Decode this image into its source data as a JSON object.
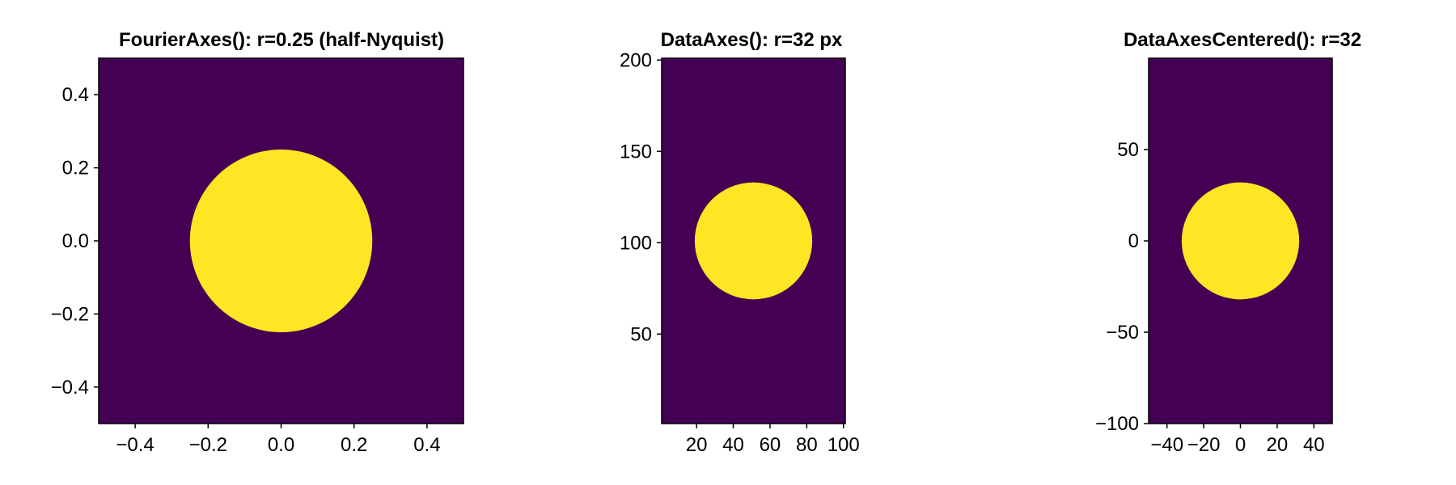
{
  "chart_data": [
    {
      "type": "heatmap",
      "title": "FourierAxes(): r=0.25 (half-Nyquist)",
      "xlim": [
        -0.5,
        0.5
      ],
      "ylim": [
        -0.5,
        0.5
      ],
      "x_ticks": [
        -0.4,
        -0.2,
        0.0,
        0.2,
        0.4
      ],
      "x_tick_labels": [
        "−0.4",
        "−0.2",
        "0.0",
        "0.2",
        "0.4"
      ],
      "y_ticks": [
        -0.4,
        -0.2,
        0.0,
        0.2,
        0.4
      ],
      "y_tick_labels": [
        "−0.4",
        "−0.2",
        "0.0",
        "0.2",
        "0.4"
      ],
      "disk": {
        "center": [
          0.0,
          0.0
        ],
        "radius": 0.25
      },
      "grid": false,
      "colors": {
        "outside": "#440154",
        "inside": "#fde725"
      }
    },
    {
      "type": "heatmap",
      "title": "DataAxes(): r=32 px",
      "xlim": [
        1,
        101
      ],
      "ylim": [
        1,
        201
      ],
      "x_ticks": [
        20,
        40,
        60,
        80,
        100
      ],
      "x_tick_labels": [
        "20",
        "40",
        "60",
        "80",
        "100"
      ],
      "y_ticks": [
        50,
        100,
        150,
        200
      ],
      "y_tick_labels": [
        "50",
        "100",
        "150",
        "200"
      ],
      "disk": {
        "center": [
          51,
          101
        ],
        "radius": 32
      },
      "grid": false,
      "colors": {
        "outside": "#440154",
        "inside": "#fde725"
      }
    },
    {
      "type": "heatmap",
      "title": "DataAxesCentered(): r=32",
      "xlim": [
        -50,
        50
      ],
      "ylim": [
        -100,
        100
      ],
      "x_ticks": [
        -40,
        -20,
        0,
        20,
        40
      ],
      "x_tick_labels": [
        "−40",
        "−20",
        "0",
        "20",
        "40"
      ],
      "y_ticks": [
        -100,
        -50,
        0,
        50
      ],
      "y_tick_labels": [
        "−100",
        "−50",
        "0",
        "50"
      ],
      "disk": {
        "center": [
          0,
          0
        ],
        "radius": 32
      },
      "grid": false,
      "colors": {
        "outside": "#440154",
        "inside": "#fde725"
      }
    }
  ]
}
